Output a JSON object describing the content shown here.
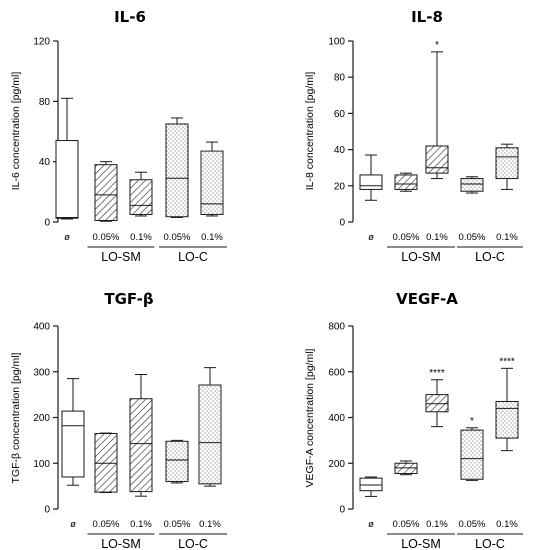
{
  "chart_data": [
    {
      "type": "box",
      "title": "IL-6",
      "ylabel": "IL-6 concentration [pg/ml]",
      "ylim": [
        0,
        120
      ],
      "yticks": [
        0,
        40,
        80,
        120
      ],
      "categories": [
        "ø",
        "0.05%",
        "0.1%",
        "0.05%",
        "0.1%"
      ],
      "groups": [
        {
          "label": "LO-SM",
          "categories": [
            1,
            2
          ]
        },
        {
          "label": "LO-C",
          "categories": [
            3,
            4
          ]
        }
      ],
      "fills": [
        "none",
        "hatch",
        "hatch",
        "dots",
        "dots"
      ],
      "boxes": [
        {
          "min": 2,
          "q1": 2.5,
          "median": 3,
          "q3": 54,
          "max": 82,
          "sig": ""
        },
        {
          "min": 0.5,
          "q1": 1,
          "median": 18,
          "q3": 38,
          "max": 40,
          "sig": ""
        },
        {
          "min": 4,
          "q1": 5,
          "median": 11,
          "q3": 28,
          "max": 33,
          "sig": ""
        },
        {
          "min": 3,
          "q1": 3.5,
          "median": 29,
          "q3": 65,
          "max": 69,
          "sig": ""
        },
        {
          "min": 4,
          "q1": 5,
          "median": 12,
          "q3": 47,
          "max": 53,
          "sig": ""
        }
      ]
    },
    {
      "type": "box",
      "title": "IL-8",
      "ylabel": "IL-8 concentration [pg/ml]",
      "ylim": [
        0,
        100
      ],
      "yticks": [
        0,
        20,
        40,
        60,
        80,
        100
      ],
      "categories": [
        "ø",
        "0.05%",
        "0.1%",
        "0.05%",
        "0.1%"
      ],
      "groups": [
        {
          "label": "LO-SM",
          "categories": [
            1,
            2
          ]
        },
        {
          "label": "LO-C",
          "categories": [
            3,
            4
          ]
        }
      ],
      "fills": [
        "none",
        "hatch",
        "hatch",
        "dots",
        "dots"
      ],
      "boxes": [
        {
          "min": 12,
          "q1": 18,
          "median": 20,
          "q3": 26,
          "max": 37,
          "sig": ""
        },
        {
          "min": 17,
          "q1": 18,
          "median": 21,
          "q3": 26,
          "max": 27,
          "sig": ""
        },
        {
          "min": 24,
          "q1": 27,
          "median": 30,
          "q3": 42,
          "max": 94,
          "sig": "*"
        },
        {
          "min": 16,
          "q1": 17,
          "median": 21,
          "q3": 24,
          "max": 25,
          "sig": ""
        },
        {
          "min": 18,
          "q1": 24,
          "median": 36,
          "q3": 41,
          "max": 43,
          "sig": ""
        }
      ]
    },
    {
      "type": "box",
      "title": "TGF-β",
      "ylabel": "TGF-β concentration [pg/ml]",
      "ylim": [
        0,
        400
      ],
      "yticks": [
        0,
        100,
        200,
        300,
        400
      ],
      "categories": [
        "ø",
        "0.05%",
        "0.1%",
        "0.05%",
        "0.1%"
      ],
      "groups": [
        {
          "label": "LO-SM",
          "categories": [
            1,
            2
          ]
        },
        {
          "label": "LO-C",
          "categories": [
            3,
            4
          ]
        }
      ],
      "fills": [
        "none",
        "hatch",
        "hatch",
        "dots",
        "dots"
      ],
      "boxes": [
        {
          "min": 52,
          "q1": 70,
          "median": 182,
          "q3": 214,
          "max": 285,
          "sig": ""
        },
        {
          "min": 36,
          "q1": 37,
          "median": 100,
          "q3": 165,
          "max": 166,
          "sig": ""
        },
        {
          "min": 28,
          "q1": 38,
          "median": 143,
          "q3": 241,
          "max": 294,
          "sig": ""
        },
        {
          "min": 57,
          "q1": 60,
          "median": 107,
          "q3": 148,
          "max": 150,
          "sig": ""
        },
        {
          "min": 50,
          "q1": 55,
          "median": 145,
          "q3": 271,
          "max": 309,
          "sig": ""
        }
      ]
    },
    {
      "type": "box",
      "title": "VEGF-A",
      "ylabel": "VEGF-A concentration [pg/ml]",
      "ylim": [
        0,
        800
      ],
      "yticks": [
        0,
        200,
        400,
        600,
        800
      ],
      "categories": [
        "ø",
        "0.05%",
        "0.1%",
        "0.05%",
        "0.1%"
      ],
      "groups": [
        {
          "label": "LO-SM",
          "categories": [
            1,
            2
          ]
        },
        {
          "label": "LO-C",
          "categories": [
            3,
            4
          ]
        }
      ],
      "fills": [
        "none",
        "hatch",
        "hatch",
        "dots",
        "dots"
      ],
      "boxes": [
        {
          "min": 55,
          "q1": 80,
          "median": 105,
          "q3": 135,
          "max": 140,
          "sig": ""
        },
        {
          "min": 150,
          "q1": 155,
          "median": 180,
          "q3": 200,
          "max": 210,
          "sig": ""
        },
        {
          "min": 360,
          "q1": 425,
          "median": 460,
          "q3": 500,
          "max": 565,
          "sig": "****"
        },
        {
          "min": 125,
          "q1": 130,
          "median": 220,
          "q3": 345,
          "max": 355,
          "sig": "*"
        },
        {
          "min": 255,
          "q1": 310,
          "median": 440,
          "q3": 470,
          "max": 615,
          "sig": "****"
        }
      ]
    }
  ]
}
